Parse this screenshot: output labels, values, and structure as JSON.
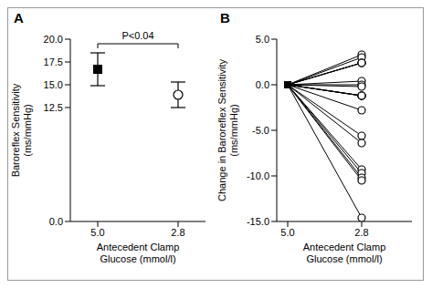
{
  "chart_data": [
    {
      "type": "scatter",
      "title": "A",
      "xlabel": [
        "Antecedent Clamp",
        "Glucose (mmol/l)"
      ],
      "ylabel": [
        "Baroreflex Sensitivity",
        "(ms/mmHg)"
      ],
      "categories": [
        "5.0",
        "2.8"
      ],
      "series": [
        {
          "values": [
            16.7,
            null
          ],
          "error": [
            1.8,
            null
          ],
          "marker": "square",
          "color": "#000000"
        },
        {
          "values": [
            null,
            13.9
          ],
          "error": [
            null,
            1.4
          ],
          "marker": "open_circle",
          "color": "#000000"
        }
      ],
      "annotation": "P<0.04",
      "ylim": [
        0,
        20
      ],
      "yticks": [
        {
          "value": 0,
          "label": "0.0"
        },
        {
          "value": 12.5,
          "label": "12.5"
        },
        {
          "value": 15,
          "label": "15.0"
        },
        {
          "value": 17.5,
          "label": "17.5"
        },
        {
          "value": 20,
          "label": "20.0"
        }
      ]
    },
    {
      "type": "line",
      "title": "B",
      "xlabel": [
        "Antecedent Clamp",
        "Glucose (mmol/l)"
      ],
      "ylabel": [
        "Change in Baroreflex Sensitivity",
        "(ms/mmHg)"
      ],
      "categories": [
        "5.0",
        "2.8"
      ],
      "color": "#000000",
      "marker": "open_circle",
      "series": [
        {
          "values": [
            0,
            3.3
          ]
        },
        {
          "values": [
            0,
            3.0
          ]
        },
        {
          "values": [
            0,
            2.4
          ]
        },
        {
          "values": [
            0,
            2.4
          ]
        },
        {
          "values": [
            0,
            2.4
          ]
        },
        {
          "values": [
            0,
            0.4
          ]
        },
        {
          "values": [
            0,
            0
          ]
        },
        {
          "values": [
            0,
            -0.2
          ]
        },
        {
          "values": [
            0,
            -1.2
          ]
        },
        {
          "values": [
            0,
            -1.2
          ]
        },
        {
          "values": [
            0,
            -1.2
          ]
        },
        {
          "values": [
            0,
            -1.2
          ]
        },
        {
          "values": [
            0,
            -2.8
          ]
        },
        {
          "values": [
            0,
            -5.6
          ]
        },
        {
          "values": [
            0,
            -6.4
          ]
        },
        {
          "values": [
            0,
            -9.3
          ]
        },
        {
          "values": [
            0,
            -9.7
          ]
        },
        {
          "values": [
            0,
            -10.2
          ]
        },
        {
          "values": [
            0,
            -10.5
          ]
        },
        {
          "values": [
            0,
            -14.6
          ]
        }
      ],
      "ylim": [
        -15,
        5
      ],
      "yticks": [
        {
          "value": -15,
          "label": "-15.0"
        },
        {
          "value": -10,
          "label": "-10.0"
        },
        {
          "value": -5,
          "label": "-5.0"
        },
        {
          "value": 0,
          "label": "0.0"
        },
        {
          "value": 5,
          "label": "5.0"
        }
      ]
    }
  ]
}
